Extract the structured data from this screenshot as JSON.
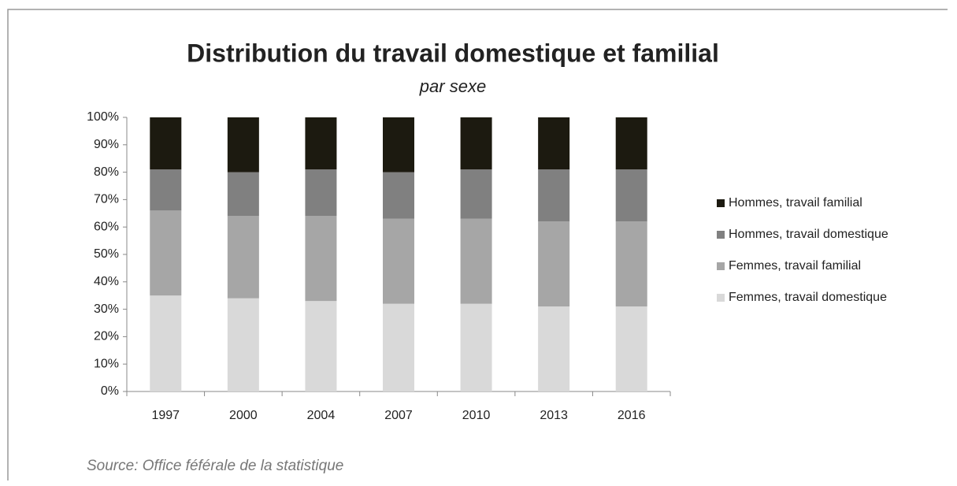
{
  "chart_data": {
    "type": "stacked_bar",
    "title": "Distribution du travail domestique et familial",
    "subtitle": "par sexe",
    "source": "Source: Office féférale de la statistique",
    "categories": [
      "1997",
      "2000",
      "2004",
      "2007",
      "2010",
      "2013",
      "2016"
    ],
    "series": [
      {
        "name": "Femmes, travail domestique",
        "color": "#d9d9d9",
        "values": [
          35,
          34,
          33,
          32,
          32,
          31,
          31
        ]
      },
      {
        "name": "Femmes, travail familial",
        "color": "#a6a6a6",
        "values": [
          31,
          30,
          31,
          31,
          31,
          31,
          31
        ]
      },
      {
        "name": "Hommes, travail domestique",
        "color": "#808080",
        "values": [
          15,
          16,
          17,
          17,
          18,
          19,
          19
        ]
      },
      {
        "name": "Hommes, travail familial",
        "color": "#1c1a10",
        "values": [
          19,
          20,
          19,
          20,
          19,
          19,
          19
        ]
      }
    ],
    "ylim": [
      0,
      100
    ],
    "yticks": [
      {
        "value": 0,
        "label": "0%"
      },
      {
        "value": 10,
        "label": "10%"
      },
      {
        "value": 20,
        "label": "20%"
      },
      {
        "value": 30,
        "label": "30%"
      },
      {
        "value": 40,
        "label": "40%"
      },
      {
        "value": 50,
        "label": "50%"
      },
      {
        "value": 60,
        "label": "60%"
      },
      {
        "value": 70,
        "label": "70%"
      },
      {
        "value": 80,
        "label": "80%"
      },
      {
        "value": 90,
        "label": "90%"
      },
      {
        "value": 100,
        "label": "100%"
      }
    ],
    "legend": "right",
    "grid": false
  }
}
